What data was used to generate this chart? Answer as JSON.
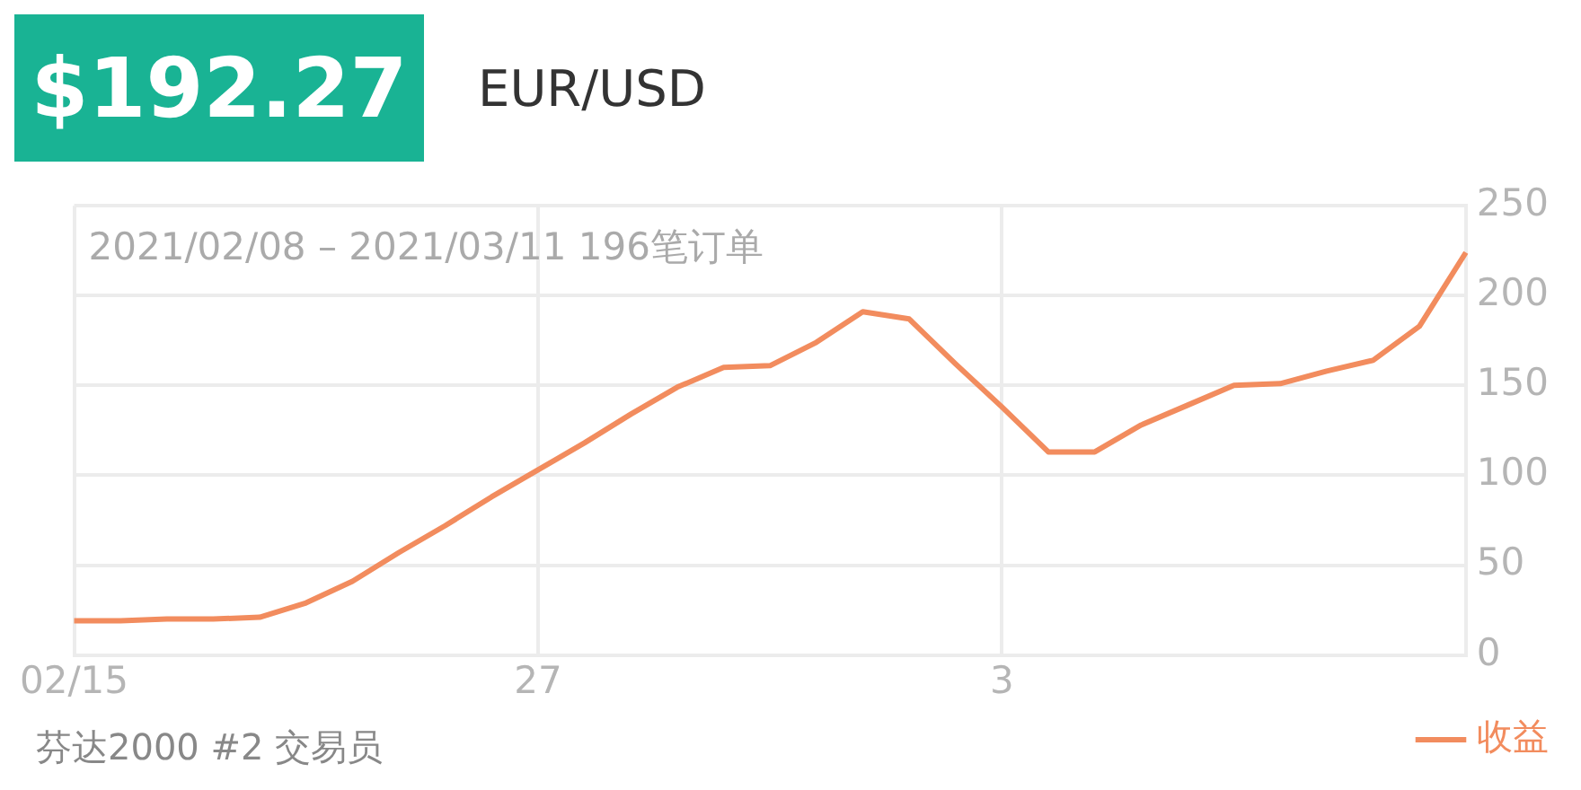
{
  "chart_data": {
    "type": "line",
    "title": "$192.27",
    "subtitle": "EUR/USD",
    "annotations": [
      "2021/02/08 – 2021/03/11 196笔订单",
      "芬达2000 #2 交易员"
    ],
    "categories": [
      "02/15",
      null,
      null,
      null,
      null,
      null,
      null,
      null,
      null,
      null,
      "27",
      null,
      null,
      null,
      null,
      null,
      null,
      null,
      null,
      null,
      "3",
      null,
      null,
      null,
      null,
      null,
      null,
      null,
      null,
      null,
      null
    ],
    "series": [
      {
        "name": "收益",
        "color": "#f28c5e",
        "values": [
          19,
          19,
          20,
          20,
          21,
          29,
          41,
          57,
          72,
          88,
          103,
          118,
          134,
          149,
          160,
          161,
          174,
          191,
          187,
          162,
          138,
          113,
          113,
          128,
          139,
          150,
          151,
          158,
          164,
          183,
          224
        ]
      }
    ],
    "ylim": [
      0,
      250
    ],
    "yticks": [
      0,
      50,
      100,
      150,
      200,
      250
    ],
    "grid": true,
    "legend": "bottom right",
    "marker": "none",
    "line_style": "solid"
  }
}
